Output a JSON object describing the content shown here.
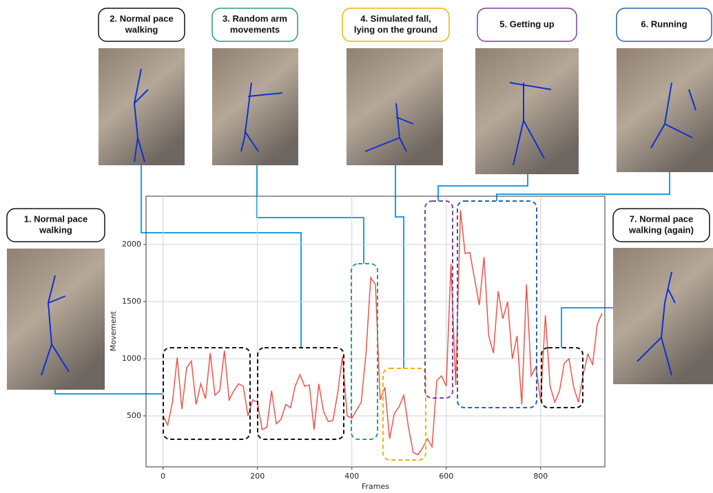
{
  "chart_data": {
    "type": "line",
    "x_label": "Frames",
    "y_label": "Movement",
    "xlim": [
      -36,
      936
    ],
    "ylim": [
      54,
      2422
    ],
    "xticks": [
      0,
      200,
      400,
      600,
      800
    ],
    "yticks": [
      500,
      1000,
      1500,
      2000
    ],
    "grid": true,
    "series": [
      {
        "color": "#f0524a",
        "x": [
          0,
          10,
          20,
          30,
          40,
          50,
          60,
          70,
          80,
          90,
          100,
          110,
          120,
          130,
          140,
          150,
          160,
          170,
          180,
          190,
          200,
          210,
          220,
          230,
          240,
          250,
          260,
          270,
          280,
          290,
          300,
          310,
          320,
          330,
          340,
          350,
          360,
          370,
          380,
          390,
          400,
          410,
          420,
          430,
          440,
          450,
          460,
          470,
          480,
          490,
          500,
          510,
          520,
          530,
          540,
          550,
          560,
          570,
          580,
          590,
          600,
          610,
          620,
          630,
          640,
          650,
          660,
          670,
          680,
          690,
          700,
          710,
          720,
          730,
          740,
          750,
          760,
          770,
          780,
          790,
          800,
          810,
          820,
          830,
          840,
          850,
          860,
          870,
          880,
          890,
          900,
          910,
          920,
          930
        ],
        "values": [
          500,
          420,
          620,
          1010,
          560,
          920,
          980,
          600,
          780,
          650,
          1050,
          680,
          720,
          1070,
          640,
          720,
          780,
          760,
          500,
          640,
          620,
          380,
          400,
          720,
          430,
          470,
          600,
          570,
          760,
          860,
          760,
          770,
          380,
          780,
          540,
          450,
          460,
          700,
          1020,
          500,
          480,
          550,
          620,
          1050,
          1710,
          1650,
          640,
          750,
          300,
          520,
          580,
          680,
          400,
          180,
          160,
          220,
          300,
          230,
          810,
          850,
          760,
          1830,
          770,
          2300,
          1920,
          1930,
          1700,
          1470,
          1890,
          1200,
          1050,
          1590,
          1350,
          1500,
          1000,
          1200,
          600,
          1650,
          850,
          930,
          630,
          1380,
          760,
          620,
          720,
          960,
          1000,
          750,
          620,
          860,
          1040,
          950,
          1300,
          1400
        ]
      }
    ],
    "annotations": [
      {
        "label": [
          "1. Normal pace",
          "walking"
        ],
        "color": "#111111"
      },
      {
        "label": [
          "2. Normal pace",
          "walking"
        ],
        "color": "#111111"
      },
      {
        "label": [
          "3. Random arm",
          "movements"
        ],
        "color": "#2a9d70"
      },
      {
        "label": [
          "4. Simulated fall,",
          "lying on the ground"
        ],
        "color": "#f0b400"
      },
      {
        "label": [
          "5. Getting up"
        ],
        "color": "#7a3fa0"
      },
      {
        "label": [
          "6. Running"
        ],
        "color": "#2563b0"
      },
      {
        "label": [
          "7. Normal pace",
          "walking (again)"
        ],
        "color": "#111111"
      }
    ]
  }
}
